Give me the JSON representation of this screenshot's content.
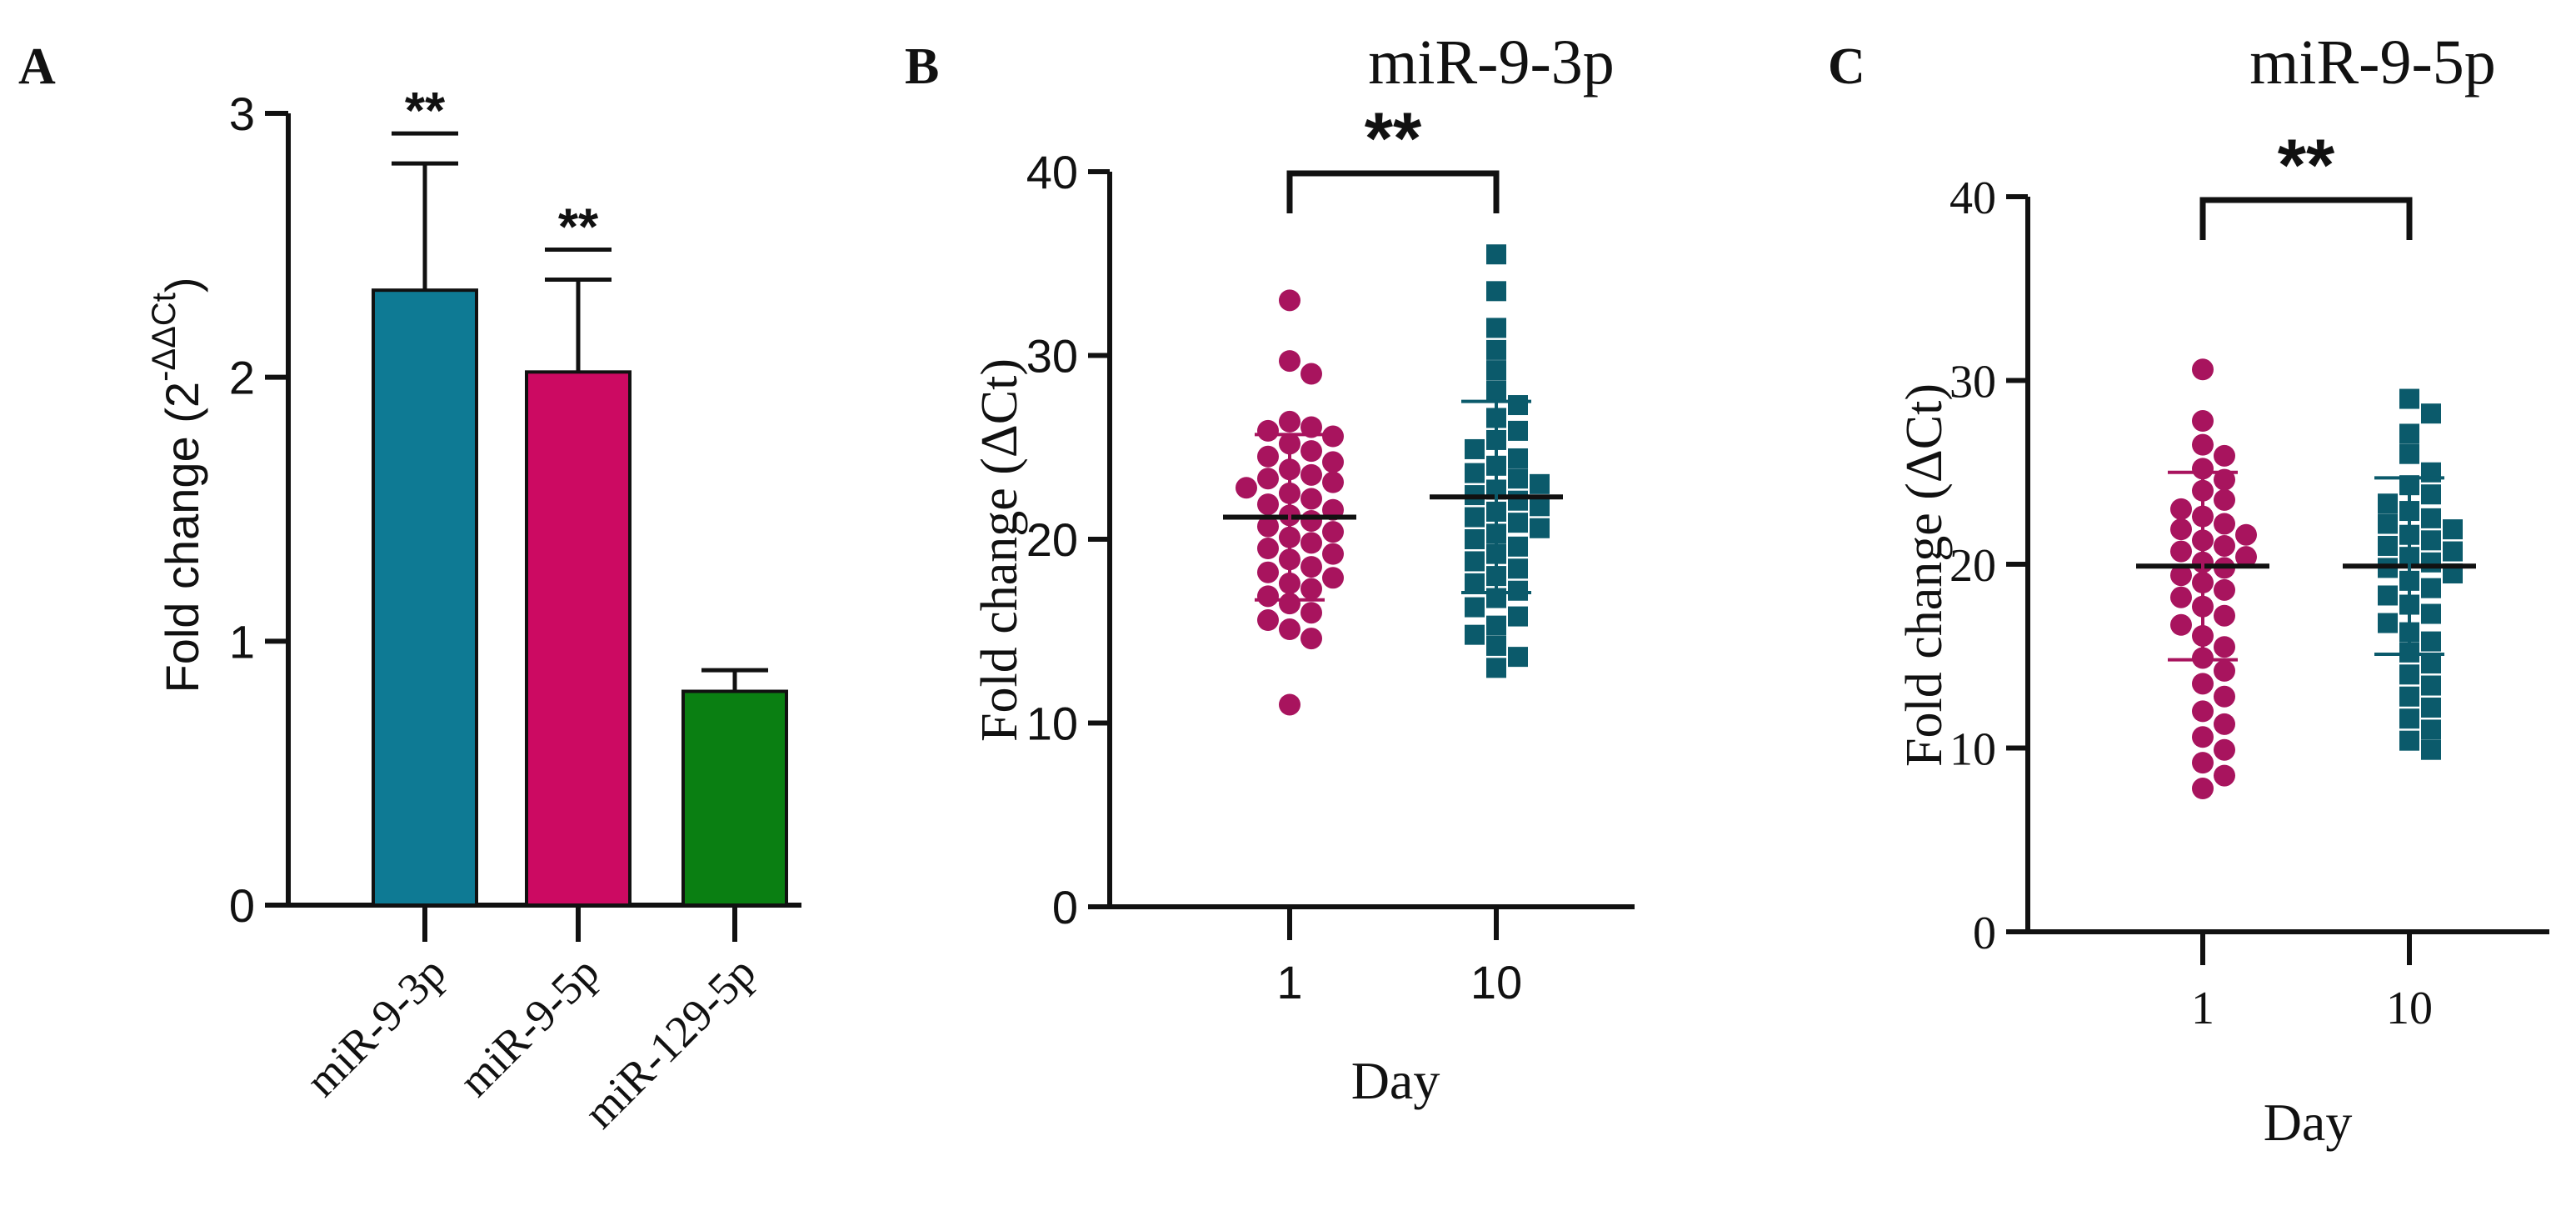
{
  "chart_data": [
    {
      "panel": "A",
      "type": "bar",
      "title": "",
      "ylabel": "Fold change (2",
      "ylabel_superscript": "-ΔΔCt",
      "ylabel_close": ")",
      "xlabel": "",
      "categories": [
        "miR-9-3p",
        "miR-9-5p",
        "miR-129-5p"
      ],
      "values": [
        2.33,
        2.02,
        0.81
      ],
      "errors": [
        0.48,
        0.35,
        0.08
      ],
      "colors": [
        "#0e7a94",
        "#cc0a62",
        "#0a7f12"
      ],
      "significance": [
        "**",
        "**",
        ""
      ],
      "ylim": [
        0,
        3
      ],
      "yticks": [
        "0",
        "1",
        "2",
        "3"
      ]
    },
    {
      "panel": "B",
      "type": "scatter",
      "title": "miR-9-3p",
      "ylabel": "Fold change (ΔCt)",
      "xlabel": "Day",
      "categories": [
        "1",
        "10"
      ],
      "ylim": [
        0,
        40
      ],
      "yticks": [
        "0",
        "10",
        "20",
        "30",
        "40"
      ],
      "significance": "**",
      "series": [
        {
          "name": "1",
          "marker": "circle",
          "color": "#a8145e",
          "mean": 21.2,
          "sd": 4.5,
          "values": [
            33.0,
            29.7,
            29.0,
            26.4,
            26.1,
            25.9,
            25.6,
            25.2,
            24.8,
            24.5,
            24.2,
            23.8,
            23.5,
            23.3,
            23.1,
            22.8,
            22.5,
            22.2,
            21.9,
            21.6,
            21.3,
            21.0,
            20.7,
            20.4,
            20.1,
            19.8,
            19.5,
            19.2,
            18.9,
            18.5,
            18.2,
            17.9,
            17.6,
            17.3,
            16.9,
            16.5,
            16.0,
            15.6,
            15.1,
            14.6,
            11.0
          ]
        },
        {
          "name": "10",
          "marker": "square",
          "color": "#0b5a6b",
          "mean": 22.3,
          "sd": 5.2,
          "values": [
            35.5,
            33.5,
            31.5,
            30.3,
            29.2,
            28.1,
            27.3,
            26.6,
            25.9,
            25.4,
            24.9,
            24.4,
            24.0,
            23.6,
            23.3,
            23.0,
            22.7,
            22.4,
            22.1,
            21.8,
            21.5,
            21.2,
            20.9,
            20.6,
            20.3,
            20.0,
            19.6,
            19.2,
            18.8,
            18.4,
            18.0,
            17.6,
            17.2,
            16.8,
            16.3,
            15.8,
            15.3,
            14.8,
            14.2,
            13.6,
            13.0
          ]
        }
      ]
    },
    {
      "panel": "C",
      "type": "scatter",
      "title": "miR-9-5p",
      "ylabel": "Fold change (ΔCt)",
      "xlabel": "Day",
      "categories": [
        "1",
        "10"
      ],
      "ylim": [
        0,
        40
      ],
      "yticks": [
        "0",
        "10",
        "20",
        "30",
        "40"
      ],
      "significance": "**",
      "series": [
        {
          "name": "1",
          "marker": "circle",
          "color": "#a8145e",
          "mean": 19.9,
          "sd": 5.1,
          "values": [
            30.6,
            27.8,
            26.5,
            25.9,
            25.2,
            24.6,
            24.0,
            23.5,
            23.0,
            22.6,
            22.2,
            21.9,
            21.6,
            21.3,
            21.0,
            20.7,
            20.4,
            20.1,
            19.8,
            19.4,
            19.0,
            18.6,
            18.2,
            17.7,
            17.2,
            16.7,
            16.1,
            15.5,
            14.9,
            14.2,
            13.5,
            12.8,
            12.0,
            11.3,
            10.6,
            9.9,
            9.2,
            8.5,
            7.8
          ]
        },
        {
          "name": "10",
          "marker": "square",
          "color": "#0b5a6b",
          "mean": 19.9,
          "sd": 4.8,
          "values": [
            29.0,
            28.2,
            27.1,
            26.0,
            25.0,
            24.3,
            23.8,
            23.3,
            22.9,
            22.5,
            22.2,
            21.9,
            21.6,
            21.3,
            21.0,
            20.7,
            20.4,
            20.1,
            19.8,
            19.5,
            19.1,
            18.7,
            18.3,
            17.8,
            17.3,
            16.8,
            16.3,
            15.8,
            15.2,
            14.6,
            14.0,
            13.4,
            12.8,
            12.2,
            11.6,
            11.0,
            10.4,
            9.9
          ]
        }
      ]
    }
  ]
}
